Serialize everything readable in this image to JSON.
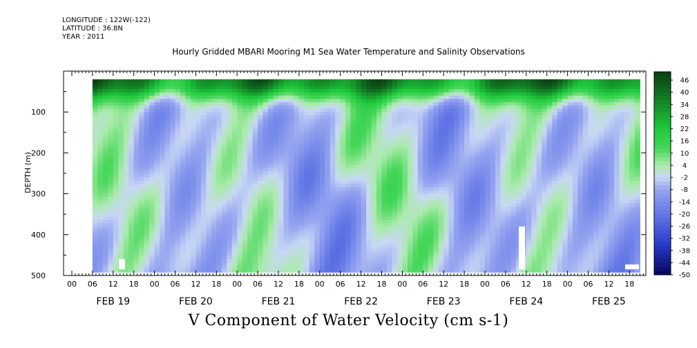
{
  "header": {
    "longitude": "LONGITUDE : 122W(-122)",
    "latitude": "LATITUDE : 36.8N",
    "year": "YEAR : 2011",
    "title": "Hourly Gridded MBARI Mooring M1 Sea Water Temperature and Salinity Observations"
  },
  "chart_data": {
    "type": "heatmap",
    "title": "Hourly Gridded MBARI Mooring M1 Sea Water Temperature and Salinity Observations",
    "subtitle": "V Component of Water Velocity (cm s-1)",
    "ylabel": "DEPTH (m)",
    "xlabel": "",
    "y_axis_reversed": true,
    "ylim": [
      0,
      500
    ],
    "y_ticks": [
      100,
      200,
      300,
      400,
      500
    ],
    "y_tick_labels": [
      "100",
      "200",
      "300",
      "400",
      "500"
    ],
    "x_hour_labels": [
      "00",
      "06",
      "12",
      "18",
      "00",
      "06",
      "12",
      "18",
      "00",
      "06",
      "12",
      "18",
      "00",
      "06",
      "12",
      "18",
      "00",
      "06",
      "12",
      "18",
      "00",
      "06",
      "12",
      "18",
      "00",
      "06",
      "12",
      "18"
    ],
    "x_day_labels": [
      "FEB 19",
      "FEB 20",
      "FEB 21",
      "FEB 22",
      "FEB 23",
      "FEB 24",
      "FEB 25"
    ],
    "data_depth_range_m": [
      20,
      485
    ],
    "colorbar": {
      "min": -50,
      "max": 50,
      "labels": [
        "46",
        "40",
        "34",
        "28",
        "22",
        "16",
        "10",
        "4",
        "-2",
        "-8",
        "-14",
        "-20",
        "-26",
        "-32",
        "-38",
        "-44",
        "-50"
      ],
      "high_color": "#0a3d12",
      "mid_color": "#c8d8f4",
      "low_color": "#05055e"
    },
    "summary": "Positive (northward, green) velocities of 20-46 cm/s dominate the upper ~50 m; below, velocities mostly range -20 to +10 cm/s in alternating bands."
  }
}
